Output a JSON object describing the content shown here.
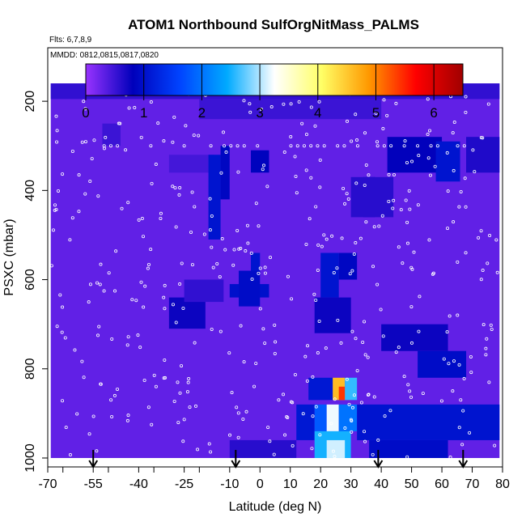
{
  "chart_data": {
    "type": "heatmap",
    "title": "ATOM1 Northbound SulfOrgNitMass_PALMS",
    "flights_label": "Flts: 6,7,8,9",
    "dates_label": "MMDD: 0812,0815,0817,0820",
    "xlabel": "Latitude (deg N)",
    "ylabel": "PSXC (mbar)",
    "xlim": [
      -70,
      80
    ],
    "ylim": [
      1020,
      80
    ],
    "x_ticks": [
      -70,
      -55,
      -40,
      -25,
      -10,
      0,
      10,
      20,
      30,
      40,
      50,
      60,
      70,
      80
    ],
    "y_ticks": [
      200,
      400,
      600,
      800,
      1000
    ],
    "colorbar": {
      "min": 0,
      "max": 6.5,
      "ticks": [
        0,
        1,
        2,
        3,
        4,
        5,
        6
      ],
      "colors": [
        "#9933ff",
        "#0000bb",
        "#0044ff",
        "#00aaff",
        "#ffffff",
        "#ffff66",
        "#ff9900",
        "#ff0000",
        "#a00000"
      ]
    },
    "background_value": 0.3,
    "field_cells": [
      {
        "lat": [
          -70,
          80
        ],
        "p": [
          160,
          195
        ],
        "v": 0.55
      },
      {
        "lat": [
          -20,
          40
        ],
        "p": [
          195,
          240
        ],
        "v": 0.5
      },
      {
        "lat": [
          -52,
          -46
        ],
        "p": [
          250,
          300
        ],
        "v": 0.5
      },
      {
        "lat": [
          -30,
          -15
        ],
        "p": [
          320,
          360
        ],
        "v": 0.45
      },
      {
        "lat": [
          -17,
          -13
        ],
        "p": [
          320,
          510
        ],
        "v": 1.05
      },
      {
        "lat": [
          -13,
          -10
        ],
        "p": [
          300,
          420
        ],
        "v": 0.9
      },
      {
        "lat": [
          -3,
          3
        ],
        "p": [
          310,
          360
        ],
        "v": 0.85
      },
      {
        "lat": [
          -3,
          0
        ],
        "p": [
          540,
          590
        ],
        "v": 1.05
      },
      {
        "lat": [
          -10,
          3
        ],
        "p": [
          610,
          640
        ],
        "v": 1.0
      },
      {
        "lat": [
          -7,
          0
        ],
        "p": [
          580,
          660
        ],
        "v": 0.95
      },
      {
        "lat": [
          -30,
          -18
        ],
        "p": [
          640,
          710
        ],
        "v": 0.75
      },
      {
        "lat": [
          -25,
          -12
        ],
        "p": [
          600,
          650
        ],
        "v": 0.55
      },
      {
        "lat": [
          20,
          26
        ],
        "p": [
          540,
          640
        ],
        "v": 1.05
      },
      {
        "lat": [
          26,
          32
        ],
        "p": [
          540,
          600
        ],
        "v": 0.9
      },
      {
        "lat": [
          18,
          30
        ],
        "p": [
          640,
          720
        ],
        "v": 0.75
      },
      {
        "lat": [
          34,
          38
        ],
        "p": [
          370,
          460
        ],
        "v": 1.0
      },
      {
        "lat": [
          30,
          44
        ],
        "p": [
          370,
          460
        ],
        "v": 0.6
      },
      {
        "lat": [
          42,
          60
        ],
        "p": [
          280,
          360
        ],
        "v": 0.8
      },
      {
        "lat": [
          58,
          66
        ],
        "p": [
          290,
          380
        ],
        "v": 1.05
      },
      {
        "lat": [
          68,
          80
        ],
        "p": [
          280,
          360
        ],
        "v": 0.65
      },
      {
        "lat": [
          40,
          62
        ],
        "p": [
          700,
          760
        ],
        "v": 0.75
      },
      {
        "lat": [
          52,
          68
        ],
        "p": [
          760,
          820
        ],
        "v": 0.95
      },
      {
        "lat": [
          16,
          24
        ],
        "p": [
          820,
          870
        ],
        "v": 1.1
      },
      {
        "lat": [
          24,
          28
        ],
        "p": [
          820,
          870
        ],
        "v": 4.6
      },
      {
        "lat": [
          26,
          30
        ],
        "p": [
          840,
          870
        ],
        "v": 5.4
      },
      {
        "lat": [
          28,
          32
        ],
        "p": [
          820,
          870
        ],
        "v": 2.6
      },
      {
        "lat": [
          12,
          18
        ],
        "p": [
          880,
          960
        ],
        "v": 1.1
      },
      {
        "lat": [
          18,
          22
        ],
        "p": [
          880,
          940
        ],
        "v": 1.8
      },
      {
        "lat": [
          22,
          26
        ],
        "p": [
          880,
          940
        ],
        "v": 3.2
      },
      {
        "lat": [
          26,
          32
        ],
        "p": [
          880,
          940
        ],
        "v": 2.0
      },
      {
        "lat": [
          18,
          30
        ],
        "p": [
          940,
          1000
        ],
        "v": 2.5
      },
      {
        "lat": [
          22,
          28
        ],
        "p": [
          960,
          1000
        ],
        "v": 3.1
      },
      {
        "lat": [
          32,
          80
        ],
        "p": [
          880,
          960
        ],
        "v": 1.05
      },
      {
        "lat": [
          36,
          62
        ],
        "p": [
          960,
          1020
        ],
        "v": 0.95
      },
      {
        "lat": [
          -10,
          12
        ],
        "p": [
          960,
          1020
        ],
        "v": 0.6
      }
    ],
    "arrow_latitudes": [
      -55,
      -8,
      39,
      67
    ]
  }
}
